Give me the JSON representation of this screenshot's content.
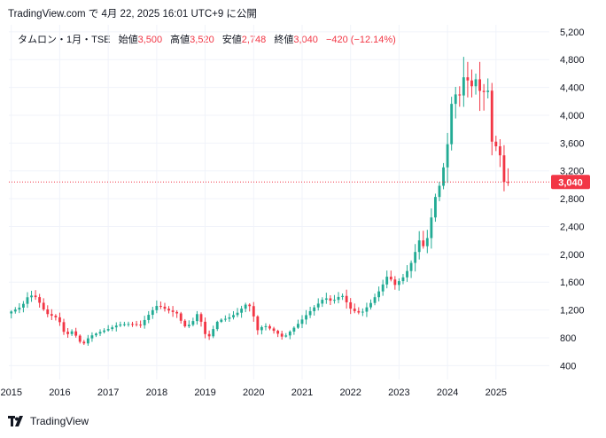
{
  "header": {
    "publish_line": "TradingView.com で 4月 22, 2025 16:01 UTC+9 に公開"
  },
  "legend": {
    "symbol": "タムロン・1月・TSE",
    "open_label": "始値",
    "open_value": "3,500",
    "high_label": "高値",
    "high_value": "3,520",
    "low_label": "安値",
    "low_value": "2,748",
    "close_label": "終値",
    "close_value": "3,040",
    "change": "−420 (−12.14%)"
  },
  "brand": {
    "name": "TradingView",
    "logo_icon": "tradingview-logo-icon"
  },
  "colors": {
    "up": "#22ab94",
    "down": "#f23645",
    "grid": "#f0f3fa",
    "text": "#131722"
  },
  "chart_data": {
    "type": "candlestick",
    "interval": "1M",
    "ylim": [
      200,
      5300
    ],
    "y_ticks": [
      400,
      800,
      1200,
      1600,
      2000,
      2400,
      2800,
      3200,
      3600,
      4000,
      4400,
      4800,
      5200
    ],
    "y_tick_labels": [
      "400",
      "800",
      "1,200",
      "1,600",
      "2,000",
      "2,400",
      "2,800",
      "3,200",
      "3,600",
      "4,000",
      "4,400",
      "4,800",
      "5,200"
    ],
    "x_ticks": [
      2015,
      2016,
      2017,
      2018,
      2019,
      2020,
      2021,
      2022,
      2023,
      2024,
      2025
    ],
    "x_tick_labels": [
      "2015",
      "2016",
      "2017",
      "2018",
      "2019",
      "2020",
      "2021",
      "2022",
      "2023",
      "2024",
      "2025"
    ],
    "x_range": [
      2014.95,
      2026.1
    ],
    "last_price": 3040,
    "last_price_label": "3,040",
    "anchors": [
      [
        2015.0,
        1150
      ],
      [
        2015.3,
        1250
      ],
      [
        2015.45,
        1420
      ],
      [
        2015.6,
        1380
      ],
      [
        2015.8,
        1150
      ],
      [
        2016.05,
        1080
      ],
      [
        2016.2,
        830
      ],
      [
        2016.35,
        900
      ],
      [
        2016.55,
        690
      ],
      [
        2016.7,
        820
      ],
      [
        2016.9,
        880
      ],
      [
        2017.1,
        930
      ],
      [
        2017.3,
        990
      ],
      [
        2017.55,
        1000
      ],
      [
        2017.75,
        980
      ],
      [
        2017.95,
        1160
      ],
      [
        2018.1,
        1270
      ],
      [
        2018.3,
        1200
      ],
      [
        2018.5,
        1150
      ],
      [
        2018.65,
        960
      ],
      [
        2018.8,
        1000
      ],
      [
        2018.95,
        1180
      ],
      [
        2019.05,
        880
      ],
      [
        2019.15,
        800
      ],
      [
        2019.35,
        1050
      ],
      [
        2019.55,
        1080
      ],
      [
        2019.75,
        1160
      ],
      [
        2019.95,
        1300
      ],
      [
        2020.05,
        1210
      ],
      [
        2020.15,
        900
      ],
      [
        2020.3,
        980
      ],
      [
        2020.5,
        900
      ],
      [
        2020.7,
        800
      ],
      [
        2020.85,
        900
      ],
      [
        2021.0,
        1000
      ],
      [
        2021.2,
        1150
      ],
      [
        2021.4,
        1280
      ],
      [
        2021.55,
        1380
      ],
      [
        2021.7,
        1320
      ],
      [
        2021.9,
        1420
      ],
      [
        2022.1,
        1200
      ],
      [
        2022.3,
        1150
      ],
      [
        2022.5,
        1300
      ],
      [
        2022.7,
        1500
      ],
      [
        2022.85,
        1700
      ],
      [
        2023.0,
        1560
      ],
      [
        2023.2,
        1690
      ],
      [
        2023.35,
        1900
      ],
      [
        2023.5,
        2200
      ],
      [
        2023.6,
        2100
      ],
      [
        2023.7,
        2300
      ],
      [
        2023.8,
        2760
      ],
      [
        2023.95,
        3050
      ],
      [
        2024.1,
        3650
      ],
      [
        2024.2,
        4420
      ],
      [
        2024.3,
        4180
      ],
      [
        2024.45,
        4650
      ],
      [
        2024.55,
        4350
      ],
      [
        2024.65,
        4550
      ],
      [
        2024.8,
        4250
      ],
      [
        2024.9,
        4500
      ],
      [
        2025.0,
        3620
      ],
      [
        2025.15,
        3500
      ],
      [
        2025.25,
        3040
      ]
    ]
  }
}
